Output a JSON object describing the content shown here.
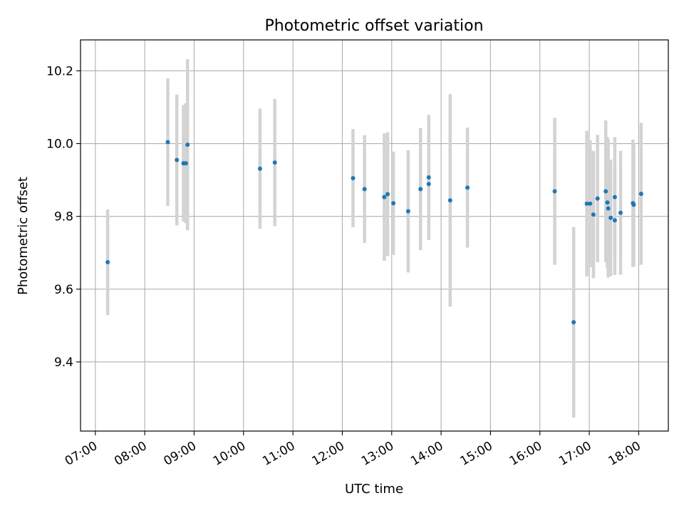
{
  "chart_data": {
    "type": "scatter",
    "title": "Photometric offset variation",
    "xlabel": "UTC time",
    "ylabel": "Photometric offset",
    "x_unit": "hours (UTC, hh:mm)",
    "xlim": [
      "06:42",
      "18:36"
    ],
    "ylim": [
      9.21,
      10.285
    ],
    "x_ticks": [
      "07:00",
      "08:00",
      "09:00",
      "10:00",
      "11:00",
      "12:00",
      "13:00",
      "14:00",
      "15:00",
      "16:00",
      "17:00",
      "18:00"
    ],
    "y_ticks": [
      "9.4",
      "9.6",
      "9.8",
      "10.0",
      "10.2"
    ],
    "grid": true,
    "legend": "none",
    "colors": {
      "point": "#1f77b4",
      "errorbar": "#d3d3d3",
      "grid": "#b0b0b0"
    },
    "points": [
      {
        "x": "07:15",
        "y": 9.674,
        "yerr": 0.145
      },
      {
        "x": "08:28",
        "y": 10.004,
        "yerr": 0.175
      },
      {
        "x": "08:39",
        "y": 9.955,
        "yerr": 0.18
      },
      {
        "x": "08:47",
        "y": 9.946,
        "yerr": 0.16
      },
      {
        "x": "08:50",
        "y": 9.946,
        "yerr": 0.165
      },
      {
        "x": "08:52",
        "y": 9.997,
        "yerr": 0.235
      },
      {
        "x": "10:20",
        "y": 9.931,
        "yerr": 0.165
      },
      {
        "x": "10:38",
        "y": 9.948,
        "yerr": 0.175
      },
      {
        "x": "12:13",
        "y": 9.905,
        "yerr": 0.135
      },
      {
        "x": "12:27",
        "y": 9.875,
        "yerr": 0.148
      },
      {
        "x": "12:51",
        "y": 9.853,
        "yerr": 0.175
      },
      {
        "x": "12:55",
        "y": 9.861,
        "yerr": 0.17
      },
      {
        "x": "13:02",
        "y": 9.836,
        "yerr": 0.142
      },
      {
        "x": "13:20",
        "y": 9.814,
        "yerr": 0.168
      },
      {
        "x": "13:35",
        "y": 9.875,
        "yerr": 0.168
      },
      {
        "x": "13:45",
        "y": 9.907,
        "yerr": 0.172
      },
      {
        "x": "13:45",
        "y": 9.889,
        "yerr": 0.15
      },
      {
        "x": "14:11",
        "y": 9.844,
        "yerr": 0.292
      },
      {
        "x": "14:32",
        "y": 9.879,
        "yerr": 0.165
      },
      {
        "x": "16:18",
        "y": 9.869,
        "yerr": 0.202
      },
      {
        "x": "16:41",
        "y": 9.509,
        "yerr": 0.262
      },
      {
        "x": "16:57",
        "y": 9.835,
        "yerr": 0.2
      },
      {
        "x": "17:01",
        "y": 9.835,
        "yerr": 0.175
      },
      {
        "x": "17:05",
        "y": 9.805,
        "yerr": 0.175
      },
      {
        "x": "17:10",
        "y": 9.849,
        "yerr": 0.175
      },
      {
        "x": "17:20",
        "y": 9.869,
        "yerr": 0.195
      },
      {
        "x": "17:22",
        "y": 9.838,
        "yerr": 0.18
      },
      {
        "x": "17:23",
        "y": 9.822,
        "yerr": 0.19
      },
      {
        "x": "17:26",
        "y": 9.796,
        "yerr": 0.16
      },
      {
        "x": "17:31",
        "y": 9.789,
        "yerr": 0.15
      },
      {
        "x": "17:31",
        "y": 9.853,
        "yerr": 0.165
      },
      {
        "x": "17:38",
        "y": 9.81,
        "yerr": 0.17
      },
      {
        "x": "17:53",
        "y": 9.836,
        "yerr": 0.175
      },
      {
        "x": "17:54",
        "y": 9.832,
        "yerr": 0.17
      },
      {
        "x": "18:03",
        "y": 9.862,
        "yerr": 0.195
      }
    ]
  }
}
